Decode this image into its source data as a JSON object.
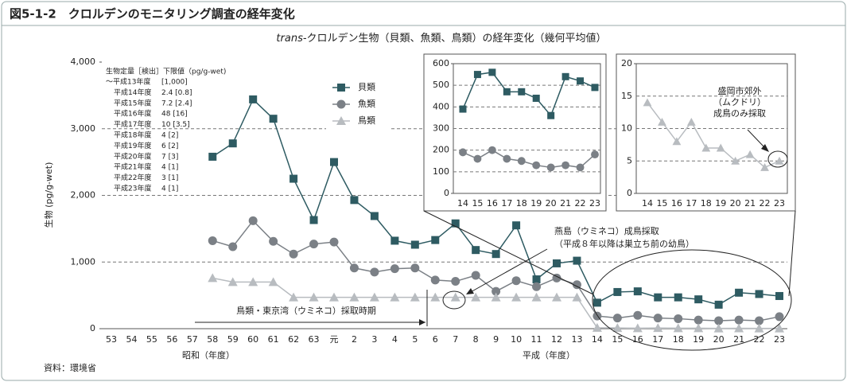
{
  "figure_title": "図5-1-2　クロルデンのモニタリング調査の経年変化",
  "source": "資料：環境省",
  "chart_data": [
    {
      "type": "line",
      "subtitle": [
        "trans-",
        "クロルデン生物（貝類、魚類、鳥類）の経年変化（幾何平均値）"
      ],
      "y_label": "生物 (pg/g-wet)",
      "x_labels": [
        "昭和（年度）",
        "平成（年度）"
      ],
      "categories": [
        "53",
        "54",
        "55",
        "56",
        "57",
        "58",
        "59",
        "60",
        "61",
        "62",
        "63",
        "元",
        "2",
        "3",
        "4",
        "5",
        "6",
        "7",
        "8",
        "9",
        "10",
        "11",
        "12",
        "13",
        "14",
        "15",
        "16",
        "17",
        "18",
        "19",
        "20",
        "21",
        "22",
        "23"
      ],
      "series": [
        {
          "name": "貝類",
          "color": "#2e5b62",
          "marker": "square",
          "values": [
            null,
            null,
            null,
            null,
            null,
            2580,
            2780,
            3440,
            3150,
            2250,
            1630,
            2500,
            1930,
            1690,
            1320,
            1260,
            1330,
            1580,
            1180,
            1120,
            1550,
            740,
            980,
            1020,
            390,
            550,
            560,
            470,
            470,
            440,
            360,
            540,
            520,
            490
          ]
        },
        {
          "name": "魚類",
          "color": "#7b8086",
          "marker": "circle",
          "values": [
            null,
            null,
            null,
            null,
            null,
            1320,
            1230,
            1620,
            1310,
            1120,
            1270,
            1300,
            910,
            850,
            900,
            910,
            730,
            710,
            800,
            560,
            720,
            630,
            760,
            660,
            190,
            160,
            200,
            160,
            150,
            130,
            120,
            130,
            120,
            180
          ]
        },
        {
          "name": "鳥類",
          "color": "#b8bcc0",
          "marker": "triangle",
          "values": [
            null,
            null,
            null,
            null,
            null,
            760,
            700,
            700,
            700,
            470,
            470,
            470,
            470,
            470,
            470,
            470,
            470,
            470,
            470,
            470,
            470,
            470,
            470,
            470,
            14,
            11,
            8,
            11,
            7,
            7,
            5,
            6,
            4,
            5
          ]
        }
      ],
      "ylim": [
        0,
        4000
      ],
      "yticks": [
        0,
        {
          "value": 1000,
          "label": "1,000"
        },
        {
          "value": 2000,
          "label": "2,000"
        },
        {
          "value": 3000,
          "label": "3,000"
        },
        {
          "value": 4000,
          "label": "4,000"
        }
      ],
      "grid": true,
      "legend": true,
      "note_header": "生物定量［検出］下限値（pg/g-wet)",
      "note": [
        [
          "～平成13年度",
          "[1,000]"
        ],
        [
          "平成14年度",
          "2.4 [0.8]"
        ],
        [
          "平成15年度",
          "7.2 [2.4]"
        ],
        [
          "平成16年度",
          "48 [16]"
        ],
        [
          "平成17年度",
          "10 [3.5]"
        ],
        [
          "平成18年度",
          "4 [2]"
        ],
        [
          "平成19年度",
          "6 [2]"
        ],
        [
          "平成20年度",
          "7 [3]"
        ],
        [
          "平成21年度",
          "4 [1]"
        ],
        [
          "平成22年度",
          "3 [1]"
        ],
        [
          "平成23年度",
          "4 [1]"
        ]
      ],
      "annotations": [
        "鳥類・東京湾（ウミネコ）採取時期",
        "燕島（ウミネコ）成鳥採取",
        "（平成８年以降は巣立ち前の幼鳥）"
      ]
    },
    {
      "type": "line",
      "categories": [
        "14",
        "15",
        "16",
        "17",
        "18",
        "19",
        "20",
        "21",
        "22",
        "23"
      ],
      "series": [
        {
          "name": "貝類",
          "color": "#2e5b62",
          "marker": "square",
          "values": [
            390,
            550,
            560,
            470,
            470,
            440,
            360,
            540,
            520,
            490
          ]
        },
        {
          "name": "魚類",
          "color": "#7b8086",
          "marker": "circle",
          "values": [
            190,
            160,
            200,
            160,
            150,
            130,
            120,
            130,
            120,
            180
          ]
        }
      ],
      "ylim": [
        0,
        600
      ],
      "yticks": [
        0,
        100,
        200,
        300,
        400,
        500,
        600
      ],
      "grid": true
    },
    {
      "type": "line",
      "categories": [
        "14",
        "15",
        "16",
        "17",
        "18",
        "19",
        "20",
        "21",
        "22",
        "23"
      ],
      "series": [
        {
          "name": "鳥類",
          "color": "#b8bcc0",
          "marker": "triangle",
          "values": [
            14,
            11,
            8,
            11,
            7,
            7,
            5,
            6,
            4,
            5
          ]
        }
      ],
      "ylim": [
        0,
        20
      ],
      "yticks": [
        0,
        5,
        10,
        15,
        20
      ],
      "grid": true,
      "annotations": [
        "盛岡市郊外",
        "（ムクドリ）",
        "成鳥のみ採取"
      ]
    }
  ]
}
